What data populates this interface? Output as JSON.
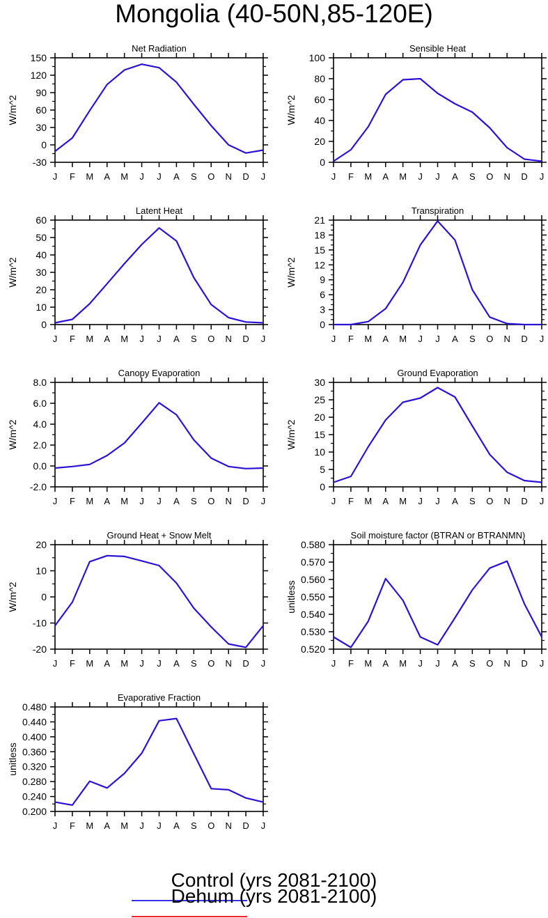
{
  "title": "Mongolia (40-50N,85-120E)",
  "months": [
    "J",
    "F",
    "M",
    "A",
    "M",
    "J",
    "J",
    "A",
    "S",
    "O",
    "N",
    "D",
    "J"
  ],
  "legend": [
    {
      "label": "Control (yrs 2081-2100)",
      "color": "#3333ee"
    },
    {
      "label": "Dehum (yrs 2081-2100)",
      "color": "#ee2222"
    }
  ],
  "chart_data": [
    {
      "type": "line",
      "title": "Net Radiation",
      "ylabel": "W/m^2",
      "ylim": [
        -30,
        150
      ],
      "yticks": [
        -30,
        0,
        30,
        60,
        90,
        120,
        150
      ],
      "minor": 2,
      "yticklabels": [
        "-30",
        "0",
        "30",
        "60",
        "90",
        "120",
        "150"
      ],
      "series": [
        {
          "color": "#2a12d6",
          "values": [
            -11,
            12,
            59,
            104,
            129,
            139,
            133,
            108,
            70,
            33,
            0,
            -14,
            -9
          ]
        }
      ]
    },
    {
      "type": "line",
      "title": "Sensible Heat",
      "ylabel": "W/m^2",
      "ylim": [
        0,
        100
      ],
      "yticks": [
        0,
        20,
        40,
        60,
        80,
        100
      ],
      "minor": 2,
      "yticklabels": [
        "0",
        "20",
        "40",
        "60",
        "80",
        "100"
      ],
      "series": [
        {
          "color": "#2a12d6",
          "values": [
            1,
            12,
            34,
            65,
            79,
            80,
            66,
            56,
            48,
            33,
            14,
            3,
            1
          ]
        }
      ]
    },
    {
      "type": "line",
      "title": "Latent Heat",
      "ylabel": "W/m^2",
      "ylim": [
        0,
        60
      ],
      "yticks": [
        0,
        10,
        20,
        30,
        40,
        50,
        60
      ],
      "minor": 2,
      "yticklabels": [
        "0",
        "10",
        "20",
        "30",
        "40",
        "50",
        "60"
      ],
      "series": [
        {
          "color": "#2a12d6",
          "values": [
            1,
            3,
            12,
            23.5,
            35,
            46,
            55.5,
            48,
            27,
            11.5,
            4,
            1.5,
            1
          ]
        }
      ]
    },
    {
      "type": "line",
      "title": "Transpiration",
      "ylabel": "W/m^2",
      "ylim": [
        0,
        21
      ],
      "yticks": [
        0,
        3,
        6,
        9,
        12,
        15,
        18,
        21
      ],
      "minor": 3,
      "yticklabels": [
        "0",
        "3",
        "6",
        "9",
        "12",
        "15",
        "18",
        "21"
      ],
      "series": [
        {
          "color": "#2a12d6",
          "values": [
            0,
            0,
            0.6,
            3.2,
            8.5,
            16,
            20.8,
            17,
            7,
            1.5,
            0.2,
            0,
            0
          ]
        }
      ]
    },
    {
      "type": "line",
      "title": "Canopy Evaporation",
      "ylabel": "W/m^2",
      "ylim": [
        -2,
        8
      ],
      "yticks": [
        -2,
        0,
        2,
        4,
        6,
        8
      ],
      "minor": 2,
      "yticklabels": [
        "-2.0",
        "0.0",
        "2.0",
        "4.0",
        "6.0",
        "8.0"
      ],
      "series": [
        {
          "color": "#2a12d6",
          "values": [
            -0.2,
            -0.05,
            0.15,
            1,
            2.2,
            4.1,
            6.05,
            4.9,
            2.5,
            0.75,
            -0.05,
            -0.25,
            -0.2
          ]
        }
      ]
    },
    {
      "type": "line",
      "title": "Ground Evaporation",
      "ylabel": "W/m^2",
      "ylim": [
        0,
        30
      ],
      "yticks": [
        0,
        5,
        10,
        15,
        20,
        25,
        30
      ],
      "minor": 2,
      "yticklabels": [
        "0",
        "5",
        "10",
        "15",
        "20",
        "25",
        "30"
      ],
      "series": [
        {
          "color": "#2a12d6",
          "values": [
            1.3,
            3,
            11.5,
            19.2,
            24.3,
            25.5,
            28.5,
            25.8,
            17.5,
            9.3,
            4.2,
            1.8,
            1.3
          ]
        }
      ]
    },
    {
      "type": "line",
      "title": "Ground Heat + Snow Melt",
      "ylabel": "W/m^2",
      "ylim": [
        -20,
        20
      ],
      "yticks": [
        -20,
        -10,
        0,
        10,
        20
      ],
      "minor": 2,
      "yticklabels": [
        "-20",
        "-10",
        "0",
        "10",
        "20"
      ],
      "series": [
        {
          "color": "#2a12d6",
          "values": [
            -11,
            -2,
            13.5,
            15.8,
            15.5,
            13.8,
            12,
            5.3,
            -4.3,
            -11.5,
            -18,
            -19.3,
            -11
          ]
        }
      ]
    },
    {
      "type": "line",
      "title": "Soil moisture factor (BTRAN or BTRANMN)",
      "ylabel": "unitless",
      "ylim": [
        0.52,
        0.58
      ],
      "yticks": [
        0.52,
        0.53,
        0.54,
        0.55,
        0.56,
        0.57,
        0.58
      ],
      "minor": 2,
      "yticklabels": [
        "0.520",
        "0.530",
        "0.540",
        "0.550",
        "0.560",
        "0.570",
        "0.580"
      ],
      "series": [
        {
          "color": "#2a12d6",
          "values": [
            0.527,
            0.521,
            0.536,
            0.5605,
            0.548,
            0.527,
            0.5225,
            0.538,
            0.554,
            0.5665,
            0.5705,
            0.546,
            0.527
          ]
        }
      ]
    },
    {
      "type": "line",
      "title": "Evaporative Fraction",
      "ylabel": "unitless",
      "ylim": [
        0.2,
        0.48
      ],
      "yticks": [
        0.2,
        0.24,
        0.28,
        0.32,
        0.36,
        0.4,
        0.44,
        0.48
      ],
      "minor": 2,
      "yticklabels": [
        "0.200",
        "0.240",
        "0.280",
        "0.320",
        "0.360",
        "0.400",
        "0.440",
        "0.480"
      ],
      "series": [
        {
          "color": "#2a12d6",
          "values": [
            0.225,
            0.217,
            0.281,
            0.263,
            0.302,
            0.356,
            0.443,
            0.449,
            0.355,
            0.261,
            0.258,
            0.236,
            0.225
          ]
        }
      ]
    }
  ]
}
